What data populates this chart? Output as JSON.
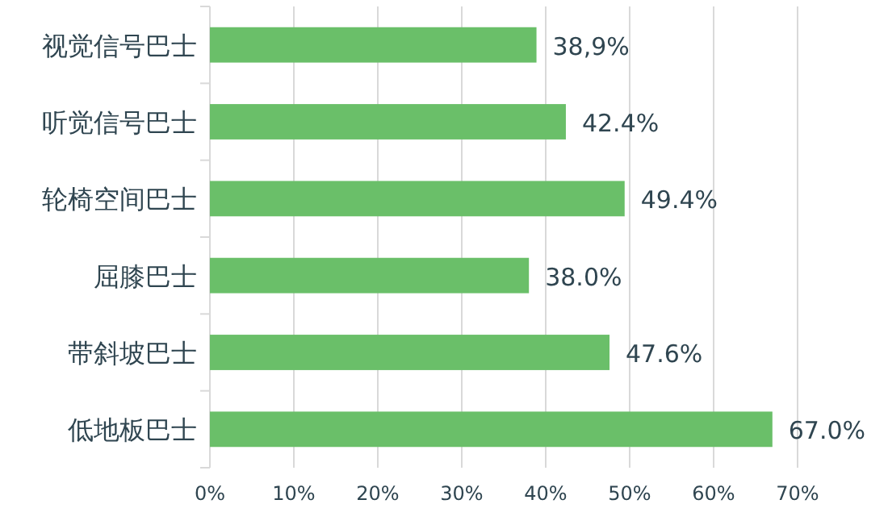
{
  "chart_data": {
    "type": "bar",
    "orientation": "horizontal",
    "categories": [
      "视觉信号巴士",
      "听觉信号巴士",
      "轮椅空间巴士",
      "屈膝巴士",
      "带斜坡巴士",
      "低地板巴士"
    ],
    "values": [
      38.9,
      42.4,
      49.4,
      38.0,
      47.6,
      67.0
    ],
    "value_labels": [
      "38,9%",
      "42.4%",
      "49.4%",
      "38.0%",
      "47.6%",
      "67.0%"
    ],
    "color": "#6abf69",
    "xlim": [
      0,
      70
    ],
    "xticks": [
      {
        "value": 0,
        "label": "0%"
      },
      {
        "value": 10,
        "label": "10%"
      },
      {
        "value": 20,
        "label": "20%"
      },
      {
        "value": 30,
        "label": "30%"
      },
      {
        "value": 40,
        "label": "40%"
      },
      {
        "value": 50,
        "label": "50%"
      },
      {
        "value": 60,
        "label": "60%"
      },
      {
        "value": 70,
        "label": "70%"
      }
    ],
    "grid": "x"
  }
}
